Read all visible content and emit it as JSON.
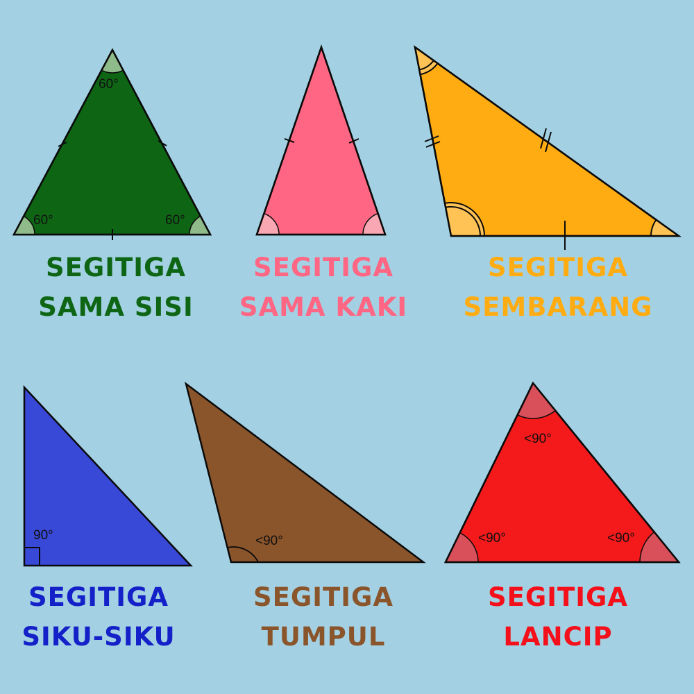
{
  "colors": {
    "background": "#a3d1e3",
    "sama_sisi": "#0e6615",
    "sama_kaki": "#ff6683",
    "sembarang": "#ffab12",
    "siku_siku": "#3848d7",
    "tumpul": "#8b552c",
    "lancip": "#f4191b"
  },
  "triangles": {
    "sama_sisi": {
      "angle_top": "60°",
      "angle_left": "60°",
      "angle_right": "60°",
      "caption_line1": "SEGITIGA",
      "caption_line2": "SAMA SISI"
    },
    "sama_kaki": {
      "caption_line1": "SEGITIGA",
      "caption_line2": "SAMA KAKI"
    },
    "sembarang": {
      "caption_line1": "SEGITIGA",
      "caption_line2": "SEMBARANG"
    },
    "siku_siku": {
      "angle_right": "90°",
      "caption_line1": "SEGITIGA",
      "caption_line2": "SIKU-SIKU"
    },
    "tumpul": {
      "angle_left": "<90°",
      "caption_line1": "SEGITIGA",
      "caption_line2": "TUMPUL"
    },
    "lancip": {
      "angle_top": "<90°",
      "angle_left": "<90°",
      "angle_right": "<90°",
      "caption_line1": "SEGITIGA",
      "caption_line2": "LANCIP"
    }
  }
}
